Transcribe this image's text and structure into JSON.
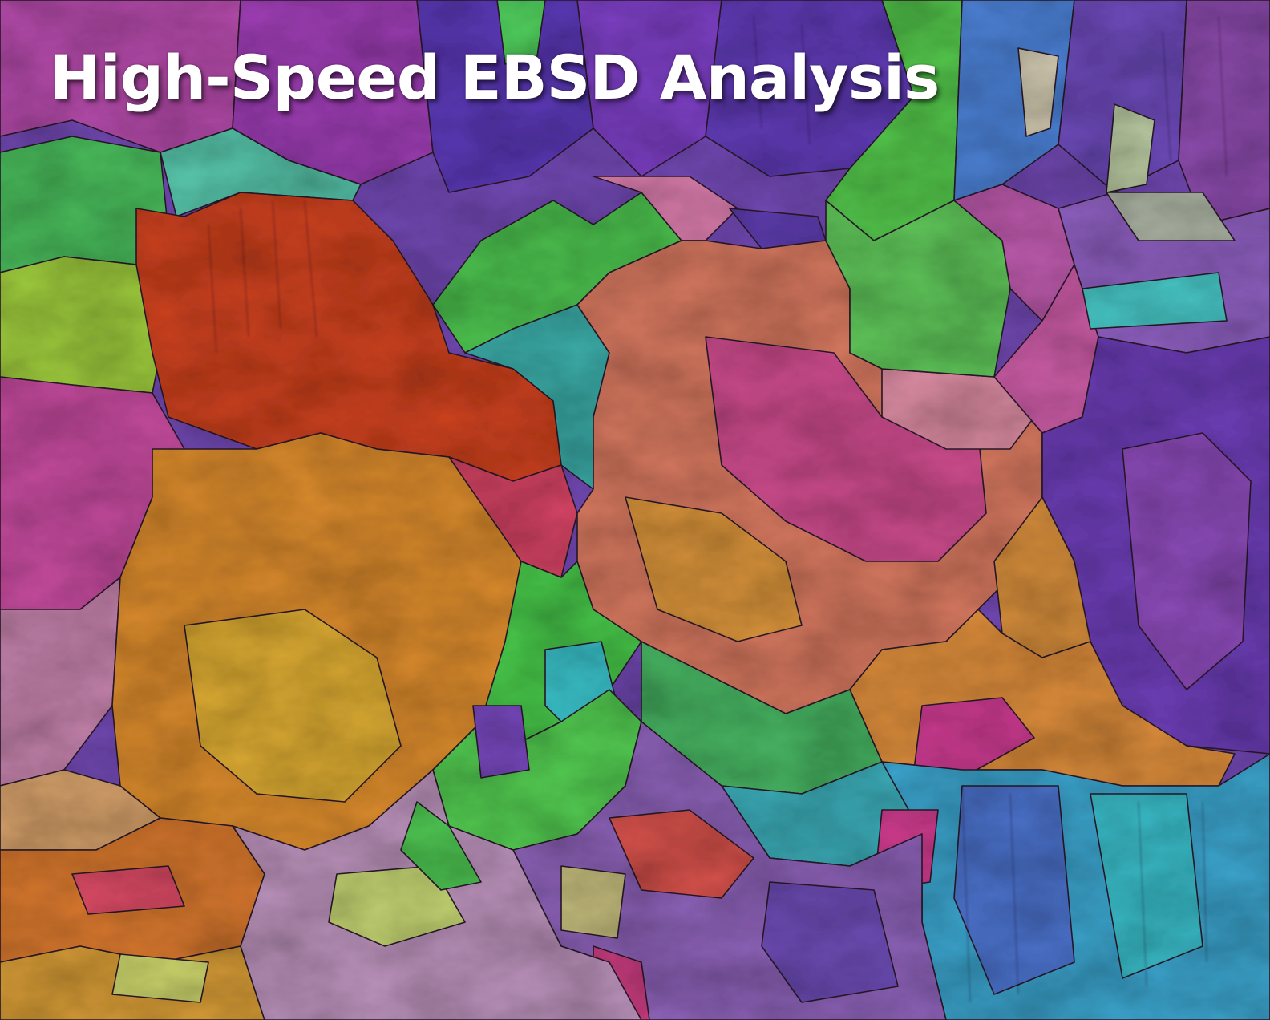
{
  "image": {
    "headline": "High-Speed EBSD Analysis",
    "subject": "ebsd-orientation-map-icon",
    "palette": {
      "red": "#c8401e",
      "orange": "#d8862a",
      "amber": "#d6a42a",
      "magenta": "#c83a8e",
      "pink": "#d07aa0",
      "purple": "#7a46b4",
      "violet": "#5a3aa8",
      "blue": "#4a64c0",
      "cyan": "#3ab6c6",
      "teal": "#38a8a0",
      "green": "#4cc24a",
      "lime": "#9ccc3a"
    }
  }
}
